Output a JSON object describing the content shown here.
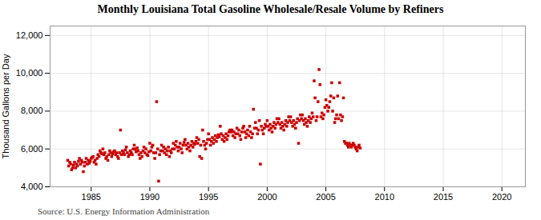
{
  "chart_data": {
    "type": "scatter",
    "title": "Monthly Louisiana Total Gasoline Wholesale/Resale Volume by Refiners",
    "ylabel": "Thousand Gallons per Day",
    "source": "Source: U.S. Energy Information Administration",
    "color": "#cc0000",
    "marker": "square",
    "grid": true,
    "xlim": [
      1981.5,
      2022
    ],
    "ylim": [
      4000,
      12500
    ],
    "xticks": [
      1985,
      1990,
      1995,
      2000,
      2005,
      2010,
      2015,
      2020
    ],
    "yticks": [
      {
        "value": 4000,
        "label": "4,000"
      },
      {
        "value": 6000,
        "label": "6,000"
      },
      {
        "value": 8000,
        "label": "8,000"
      },
      {
        "value": 10000,
        "label": "10,000"
      },
      {
        "value": 12000,
        "label": "12,000"
      }
    ],
    "x": [
      1983.0,
      1983.08,
      1983.17,
      1983.25,
      1983.33,
      1983.42,
      1983.5,
      1983.58,
      1983.67,
      1983.75,
      1983.83,
      1983.92,
      1984.0,
      1984.08,
      1984.17,
      1984.25,
      1984.33,
      1984.42,
      1984.5,
      1984.58,
      1984.67,
      1984.75,
      1984.83,
      1984.92,
      1985.0,
      1985.08,
      1985.17,
      1985.25,
      1985.33,
      1985.42,
      1985.5,
      1985.58,
      1985.67,
      1985.75,
      1985.83,
      1985.92,
      1986.0,
      1986.08,
      1986.17,
      1986.25,
      1986.33,
      1986.42,
      1986.5,
      1986.58,
      1986.67,
      1986.75,
      1986.83,
      1986.92,
      1987.0,
      1987.08,
      1987.17,
      1987.25,
      1987.33,
      1987.42,
      1987.5,
      1987.58,
      1987.67,
      1987.75,
      1987.83,
      1987.92,
      1988.0,
      1988.08,
      1988.17,
      1988.25,
      1988.33,
      1988.42,
      1988.5,
      1988.58,
      1988.67,
      1988.75,
      1988.83,
      1988.92,
      1989.0,
      1989.08,
      1989.17,
      1989.25,
      1989.33,
      1989.42,
      1989.5,
      1989.58,
      1989.67,
      1989.75,
      1989.83,
      1989.92,
      1990.0,
      1990.08,
      1990.17,
      1990.25,
      1990.33,
      1990.42,
      1990.5,
      1990.58,
      1990.67,
      1990.75,
      1990.83,
      1990.92,
      1991.0,
      1991.08,
      1991.17,
      1991.25,
      1991.33,
      1991.42,
      1991.5,
      1991.58,
      1991.67,
      1991.75,
      1991.83,
      1991.92,
      1992.0,
      1992.08,
      1992.17,
      1992.25,
      1992.33,
      1992.42,
      1992.5,
      1992.58,
      1992.67,
      1992.75,
      1992.83,
      1992.92,
      1993.0,
      1993.08,
      1993.17,
      1993.25,
      1993.33,
      1993.42,
      1993.5,
      1993.58,
      1993.67,
      1993.75,
      1993.83,
      1993.92,
      1994.0,
      1994.08,
      1994.17,
      1994.25,
      1994.33,
      1994.42,
      1994.5,
      1994.58,
      1994.67,
      1994.75,
      1994.83,
      1994.92,
      1995.0,
      1995.08,
      1995.17,
      1995.25,
      1995.33,
      1995.42,
      1995.5,
      1995.58,
      1995.67,
      1995.75,
      1995.83,
      1995.92,
      1996.0,
      1996.08,
      1996.17,
      1996.25,
      1996.33,
      1996.42,
      1996.5,
      1996.58,
      1996.67,
      1996.75,
      1996.83,
      1996.92,
      1997.0,
      1997.08,
      1997.17,
      1997.25,
      1997.33,
      1997.42,
      1997.5,
      1997.58,
      1997.67,
      1997.75,
      1997.83,
      1997.92,
      1998.0,
      1998.08,
      1998.17,
      1998.25,
      1998.33,
      1998.42,
      1998.5,
      1998.58,
      1998.67,
      1998.75,
      1998.83,
      1998.92,
      1999.0,
      1999.08,
      1999.17,
      1999.25,
      1999.33,
      1999.42,
      1999.5,
      1999.58,
      1999.67,
      1999.75,
      1999.83,
      1999.92,
      2000.0,
      2000.08,
      2000.17,
      2000.25,
      2000.33,
      2000.42,
      2000.5,
      2000.58,
      2000.67,
      2000.75,
      2000.83,
      2000.92,
      2001.0,
      2001.08,
      2001.17,
      2001.25,
      2001.33,
      2001.42,
      2001.5,
      2001.58,
      2001.67,
      2001.75,
      2001.83,
      2001.92,
      2002.0,
      2002.08,
      2002.17,
      2002.25,
      2002.33,
      2002.42,
      2002.5,
      2002.58,
      2002.67,
      2002.75,
      2002.83,
      2002.92,
      2003.0,
      2003.08,
      2003.17,
      2003.25,
      2003.33,
      2003.42,
      2003.5,
      2003.58,
      2003.67,
      2003.75,
      2003.83,
      2003.92,
      2004.0,
      2004.08,
      2004.17,
      2004.25,
      2004.33,
      2004.42,
      2004.5,
      2004.58,
      2004.67,
      2004.75,
      2004.83,
      2004.92,
      2005.0,
      2005.08,
      2005.17,
      2005.25,
      2005.33,
      2005.42,
      2005.5,
      2005.58,
      2005.67,
      2005.75,
      2005.83,
      2005.92,
      2006.0,
      2006.08,
      2006.17,
      2006.25,
      2006.33,
      2006.42,
      2006.5,
      2006.58,
      2006.67,
      2006.75,
      2006.83,
      2006.92,
      2007.0,
      2007.08,
      2007.17,
      2007.25,
      2007.33,
      2007.42,
      2007.5,
      2007.58,
      2007.67,
      2007.75,
      2007.83,
      2007.92
    ],
    "values": [
      5400,
      5100,
      5300,
      5200,
      4900,
      5000,
      5150,
      5300,
      5000,
      5200,
      5100,
      5350,
      5500,
      5200,
      5400,
      5300,
      4800,
      5100,
      5300,
      5500,
      5200,
      5400,
      5250,
      5350,
      5500,
      5550,
      5600,
      5300,
      5400,
      5200,
      5500,
      5700,
      5600,
      5900,
      5800,
      5750,
      6000,
      5700,
      5800,
      5500,
      5600,
      5400,
      5700,
      5900,
      5800,
      5600,
      5750,
      5850,
      5900,
      5700,
      5800,
      5600,
      5500,
      5800,
      7000,
      5700,
      5900,
      5800,
      5700,
      5950,
      6100,
      5800,
      5600,
      5700,
      5900,
      5800,
      5700,
      6000,
      6200,
      6000,
      5850,
      6050,
      5900,
      5700,
      5500,
      5800,
      5600,
      5900,
      6100,
      5800,
      6000,
      5700,
      5650,
      5850,
      6300,
      5900,
      6100,
      6200,
      5800,
      5500,
      5800,
      8500,
      6000,
      4300,
      5700,
      5900,
      6200,
      5900,
      6100,
      5800,
      6000,
      5700,
      5900,
      6100,
      5600,
      5900,
      5800,
      6000,
      6300,
      6000,
      6200,
      6400,
      6100,
      5900,
      6100,
      6300,
      6000,
      5800,
      6200,
      6350,
      6500,
      6200,
      6000,
      6300,
      6100,
      5900,
      6200,
      6400,
      6100,
      6300,
      6250,
      6400,
      6600,
      6300,
      6500,
      5600,
      6200,
      5500,
      7000,
      6400,
      6200,
      6000,
      6300,
      6500,
      6800,
      6500,
      6200,
      6400,
      6600,
      6300,
      6500,
      6700,
      6400,
      6600,
      6750,
      6650,
      7200,
      6800,
      6500,
      6700,
      6400,
      6600,
      6800,
      6500,
      6700,
      6900,
      7000,
      6900,
      7000,
      6700,
      6900,
      6600,
      6800,
      7100,
      6800,
      7000,
      6700,
      6500,
      6900,
      7100,
      7200,
      6900,
      6600,
      6800,
      7000,
      6700,
      7200,
      6900,
      6600,
      6800,
      8100,
      7100,
      7400,
      7100,
      6800,
      7000,
      7500,
      5200,
      7200,
      7000,
      6800,
      7100,
      7300,
      7200,
      7500,
      7200,
      7000,
      7300,
      7100,
      6900,
      7200,
      7400,
      7100,
      7300,
      7600,
      7400,
      7600,
      7300,
      7100,
      7400,
      7200,
      7000,
      7300,
      7500,
      7200,
      7400,
      7700,
      7500,
      7700,
      7400,
      7200,
      7500,
      7300,
      7100,
      7400,
      7600,
      6300,
      7500,
      7800,
      7600,
      7800,
      7500,
      7300,
      7600,
      7400,
      7200,
      7500,
      7700,
      7400,
      7600,
      7900,
      7700,
      9600,
      8700,
      7500,
      7700,
      8500,
      10200,
      9400,
      7700,
      7900,
      7600,
      7800,
      8200,
      8600,
      8300,
      8000,
      8200,
      8500,
      8800,
      9500,
      8000,
      8700,
      7400,
      7600,
      7800,
      8800,
      7600,
      9500,
      7800,
      7500,
      7700,
      8700,
      6400,
      6300,
      6300,
      6200,
      6100,
      6300,
      6200,
      6100,
      6200,
      6300,
      6200,
      6100,
      6000,
      5900,
      6100,
      6200,
      6050
    ]
  }
}
